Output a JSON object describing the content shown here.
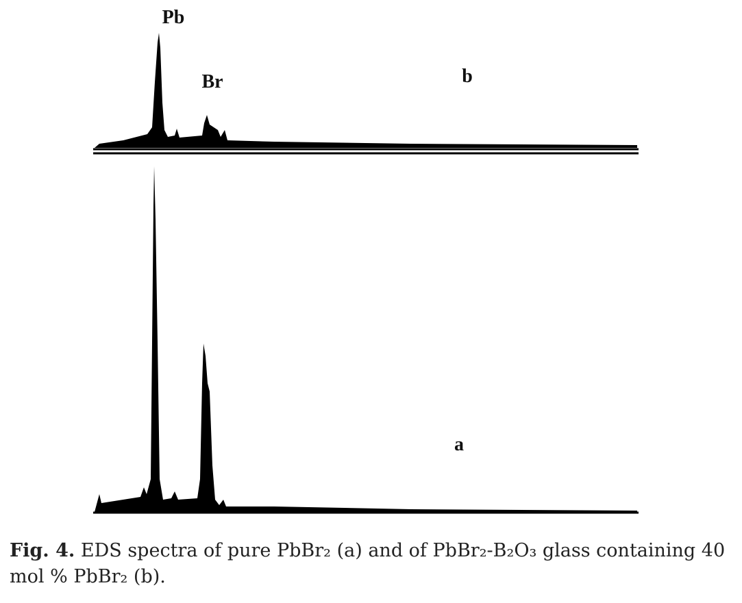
{
  "figure": {
    "peak_labels_b": [
      "Pb",
      "Br"
    ],
    "spectrum_b_label": "b",
    "spectrum_a_label": "a",
    "caption": {
      "number": "Fig. 4.",
      "text": "EDS spectra of pure PbBr₂ (a) and of PbBr₂-B₂O₃ glass containing 40 mol % PbBr₂ (b)."
    }
  }
}
